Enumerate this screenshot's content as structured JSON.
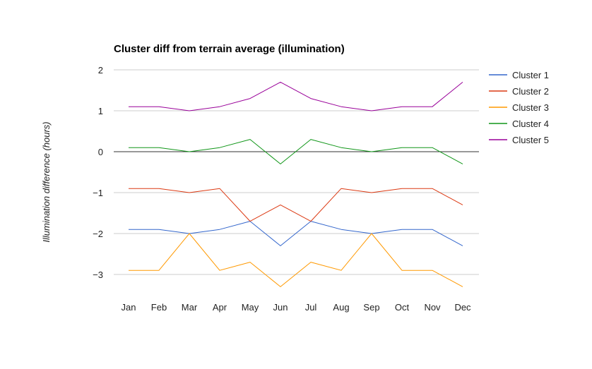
{
  "chart_data": {
    "type": "line",
    "title": "Cluster diff from terrain average (illumination)",
    "xlabel": "",
    "ylabel": "Illumination difference (hours)",
    "categories": [
      "Jan",
      "Feb",
      "Mar",
      "Apr",
      "May",
      "Jun",
      "Jul",
      "Aug",
      "Sep",
      "Oct",
      "Nov",
      "Dec"
    ],
    "ylim": [
      -3.5,
      2
    ],
    "yticks": [
      2,
      1,
      0,
      -1,
      -2,
      -3
    ],
    "ytick_labels": [
      "2",
      "1",
      "0",
      "−1",
      "−2",
      "−3"
    ],
    "grid": true,
    "legend_position": "right",
    "series": [
      {
        "name": "Cluster 1",
        "color": "#3366cc",
        "values": [
          -1.9,
          -1.9,
          -2.0,
          -1.9,
          -1.7,
          -2.3,
          -1.7,
          -1.9,
          -2.0,
          -1.9,
          -1.9,
          -2.3
        ]
      },
      {
        "name": "Cluster 2",
        "color": "#dc3912",
        "values": [
          -0.9,
          -0.9,
          -1.0,
          -0.9,
          -1.7,
          -1.3,
          -1.7,
          -0.9,
          -1.0,
          -0.9,
          -0.9,
          -1.3
        ]
      },
      {
        "name": "Cluster 3",
        "color": "#ff9900",
        "values": [
          -2.9,
          -2.9,
          -2.0,
          -2.9,
          -2.7,
          -3.3,
          -2.7,
          -2.9,
          -2.0,
          -2.9,
          -2.9,
          -3.3
        ]
      },
      {
        "name": "Cluster 4",
        "color": "#109618",
        "values": [
          0.1,
          0.1,
          0.0,
          0.1,
          0.3,
          -0.3,
          0.3,
          0.1,
          0.0,
          0.1,
          0.1,
          -0.3
        ]
      },
      {
        "name": "Cluster 5",
        "color": "#990099",
        "values": [
          1.1,
          1.1,
          1.0,
          1.1,
          1.3,
          1.7,
          1.3,
          1.1,
          1.0,
          1.1,
          1.1,
          1.7
        ]
      }
    ]
  }
}
